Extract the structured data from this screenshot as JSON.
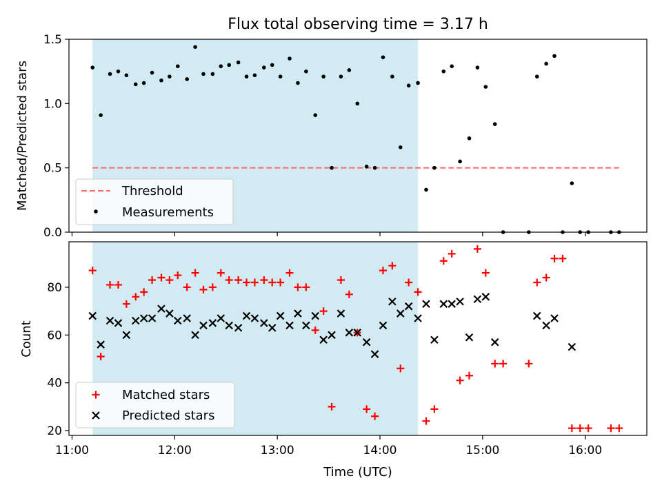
{
  "chart_data": [
    {
      "type": "scatter",
      "panel": "top",
      "title": "Flux total observing time = 3.17 h",
      "xlabel": "",
      "ylabel": "Matched/Predicted stars",
      "xlim": [
        10.97,
        16.6
      ],
      "ylim": [
        0,
        1.5
      ],
      "yticks": [
        0,
        0.5,
        1.0,
        1.5
      ],
      "ytick_labels": [
        "0.0",
        "0.5",
        "1.0",
        "1.5"
      ],
      "shaded_region": {
        "x_start": 11.2,
        "x_end": 14.37,
        "color": "#add8e6"
      },
      "threshold": {
        "label": "Threshold",
        "value": 0.5,
        "x_start": 11.2,
        "x_end": 16.33,
        "color": "#ff6666"
      },
      "legend": {
        "placement": "lower-left",
        "entries": [
          "Threshold",
          "Measurements"
        ]
      },
      "series": [
        {
          "name": "Measurements",
          "color": "#000000",
          "x": [
            11.2,
            11.28,
            11.37,
            11.45,
            11.53,
            11.62,
            11.7,
            11.78,
            11.87,
            11.95,
            12.03,
            12.12,
            12.2,
            12.28,
            12.37,
            12.45,
            12.53,
            12.62,
            12.7,
            12.78,
            12.87,
            12.95,
            13.03,
            13.12,
            13.2,
            13.28,
            13.37,
            13.45,
            13.53,
            13.62,
            13.7,
            13.78,
            13.87,
            13.95,
            14.03,
            14.12,
            14.2,
            14.28,
            14.37,
            14.45,
            14.53,
            14.62,
            14.7,
            14.78,
            14.87,
            14.95,
            15.03,
            15.12,
            15.2,
            15.45,
            15.53,
            15.62,
            15.7,
            15.78,
            15.87,
            15.95,
            16.03,
            16.25,
            16.33
          ],
          "y": [
            1.28,
            0.91,
            1.23,
            1.25,
            1.22,
            1.15,
            1.16,
            1.24,
            1.18,
            1.21,
            1.29,
            1.19,
            1.44,
            1.23,
            1.23,
            1.29,
            1.3,
            1.32,
            1.21,
            1.22,
            1.28,
            1.3,
            1.21,
            1.35,
            1.16,
            1.25,
            0.91,
            1.21,
            0.5,
            1.21,
            1.26,
            1.0,
            0.51,
            0.5,
            1.36,
            1.21,
            0.66,
            1.14,
            1.16,
            0.33,
            0.5,
            1.25,
            1.29,
            0.55,
            0.73,
            1.28,
            1.13,
            0.84,
            0.0,
            0.0,
            1.21,
            1.31,
            1.37,
            0.0,
            0.38,
            0.0,
            0.0,
            0.0,
            0.0
          ]
        }
      ]
    },
    {
      "type": "scatter",
      "panel": "bottom",
      "xlabel": "Time (UTC)",
      "ylabel": "Count",
      "xlim": [
        10.97,
        16.6
      ],
      "ylim": [
        18,
        99
      ],
      "xticks": [
        11,
        12,
        13,
        14,
        15,
        16
      ],
      "xtick_labels": [
        "11:00",
        "12:00",
        "13:00",
        "14:00",
        "15:00",
        "16:00"
      ],
      "yticks": [
        20,
        40,
        60,
        80
      ],
      "ytick_labels": [
        "20",
        "40",
        "60",
        "80"
      ],
      "shaded_region": {
        "x_start": 11.2,
        "x_end": 14.37,
        "color": "#add8e6"
      },
      "legend": {
        "placement": "lower-left",
        "entries": [
          "Matched stars",
          "Predicted stars"
        ]
      },
      "series": [
        {
          "name": "Matched stars",
          "marker": "plus",
          "color": "#ff0000",
          "x": [
            11.2,
            11.28,
            11.37,
            11.45,
            11.53,
            11.62,
            11.7,
            11.78,
            11.87,
            11.95,
            12.03,
            12.12,
            12.2,
            12.28,
            12.37,
            12.45,
            12.53,
            12.62,
            12.7,
            12.78,
            12.87,
            12.95,
            13.03,
            13.12,
            13.2,
            13.28,
            13.37,
            13.45,
            13.53,
            13.62,
            13.7,
            13.78,
            13.87,
            13.95,
            14.03,
            14.12,
            14.2,
            14.28,
            14.37,
            14.45,
            14.53,
            14.62,
            14.7,
            14.78,
            14.87,
            14.95,
            15.03,
            15.12,
            15.2,
            15.45,
            15.53,
            15.62,
            15.7,
            15.78,
            15.87,
            15.95,
            16.03,
            16.25,
            16.33
          ],
          "y": [
            87,
            51,
            81,
            81,
            73,
            76,
            78,
            83,
            84,
            83,
            85,
            80,
            86,
            79,
            80,
            86,
            83,
            83,
            82,
            82,
            83,
            82,
            82,
            86,
            80,
            80,
            62,
            70,
            30,
            83,
            77,
            61,
            29,
            26,
            87,
            89,
            46,
            82,
            78,
            24,
            29,
            91,
            94,
            41,
            43,
            96,
            86,
            48,
            48,
            48,
            82,
            84,
            92,
            92,
            21,
            21,
            21,
            21,
            21
          ]
        },
        {
          "name": "Predicted stars",
          "marker": "x",
          "color": "#000000",
          "x": [
            11.2,
            11.28,
            11.37,
            11.45,
            11.53,
            11.62,
            11.7,
            11.78,
            11.87,
            11.95,
            12.03,
            12.12,
            12.2,
            12.28,
            12.37,
            12.45,
            12.53,
            12.62,
            12.7,
            12.78,
            12.87,
            12.95,
            13.03,
            13.12,
            13.2,
            13.28,
            13.37,
            13.45,
            13.53,
            13.62,
            13.7,
            13.78,
            13.87,
            13.95,
            14.03,
            14.12,
            14.2,
            14.28,
            14.37,
            14.45,
            14.53,
            14.62,
            14.7,
            14.78,
            14.87,
            14.95,
            15.03,
            15.12,
            15.53,
            15.62,
            15.7,
            15.87
          ],
          "y": [
            68,
            56,
            66,
            65,
            60,
            66,
            67,
            67,
            71,
            69,
            66,
            67,
            60,
            64,
            65,
            67,
            64,
            63,
            68,
            67,
            65,
            63,
            68,
            64,
            69,
            64,
            68,
            58,
            60,
            69,
            61,
            61,
            57,
            52,
            64,
            74,
            69,
            72,
            67,
            73,
            58,
            73,
            73,
            74,
            59,
            75,
            76,
            57,
            68,
            64,
            67,
            55
          ]
        }
      ]
    }
  ]
}
